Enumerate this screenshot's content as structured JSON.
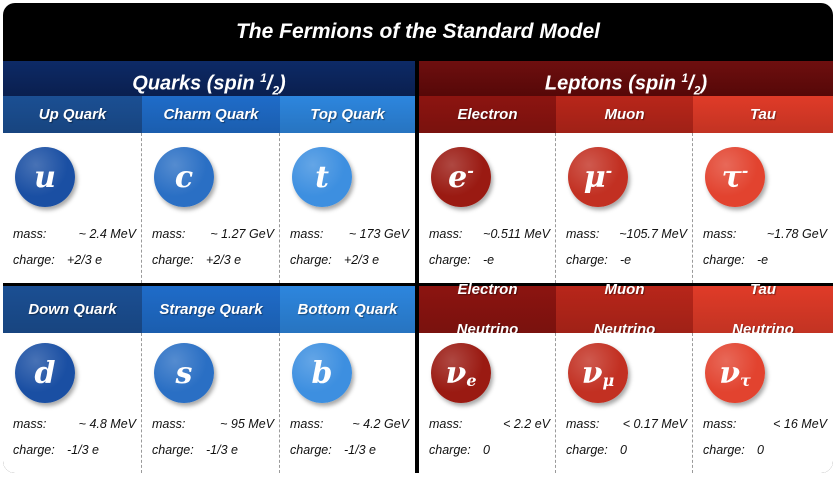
{
  "title": "The Fermions of the Standard Model",
  "sections": {
    "quarks": {
      "label": "Quarks (spin ",
      "num": "1",
      "den": "2",
      "close": ")"
    },
    "leptons": {
      "label": "Leptons (spin ",
      "num": "1",
      "den": "2",
      "close": ")"
    }
  },
  "mass_label": "mass:",
  "charge_label": "charge:",
  "particles": [
    {
      "name": "Up Quark",
      "symbol": "u",
      "mass": "~ 2.4 MeV",
      "charge": "+2/3 e",
      "color": "#1a4fa3"
    },
    {
      "name": "Charm Quark",
      "symbol": "c",
      "mass": "~ 1.27 GeV",
      "charge": "+2/3 e",
      "color": "#2a6fc4"
    },
    {
      "name": "Top Quark",
      "symbol": "t",
      "mass": "~ 173 GeV",
      "charge": "+2/3 e",
      "color": "#3d8fe0"
    },
    {
      "name": "Electron",
      "symbol": "e",
      "sup": "-",
      "mass": "~0.511 MeV",
      "charge": "-e",
      "color": "#9a1a12"
    },
    {
      "name": "Muon",
      "symbol": "μ",
      "sup": "-",
      "mass": "~105.7 MeV",
      "charge": "-e",
      "color": "#c23022"
    },
    {
      "name": "Tau",
      "symbol": "τ",
      "sup": "-",
      "mass": "~1.78 GeV",
      "charge": "-e",
      "color": "#e2432f"
    },
    {
      "name": "Down Quark",
      "symbol": "d",
      "mass": "~ 4.8 MeV",
      "charge": "-1/3 e",
      "color": "#1a4fa3"
    },
    {
      "name": "Strange Quark",
      "symbol": "s",
      "mass": "~ 95 MeV",
      "charge": "-1/3 e",
      "color": "#2a6fc4"
    },
    {
      "name": "Bottom Quark",
      "symbol": "b",
      "mass": "~ 4.2 GeV",
      "charge": "-1/3 e",
      "color": "#3d8fe0"
    },
    {
      "name": "Electron",
      "name2": "Neutrino",
      "symbol": "ν",
      "sub": "e",
      "mass": "< 2.2 eV",
      "charge": "0",
      "color": "#9a1a12"
    },
    {
      "name": "Muon",
      "name2": "Neutrino",
      "symbol": "ν",
      "sub": "μ",
      "mass": "< 0.17 MeV",
      "charge": "0",
      "color": "#c23022"
    },
    {
      "name": "Tau",
      "name2": "Neutrino",
      "symbol": "ν",
      "sub": "τ",
      "mass": "< 16 MeV",
      "charge": "0",
      "color": "#e2432f"
    }
  ],
  "header_colors": [
    "#1b4f93",
    "#1f6cc9",
    "#2d86de",
    "#8c1410",
    "#b8261a",
    "#e03b28"
  ]
}
